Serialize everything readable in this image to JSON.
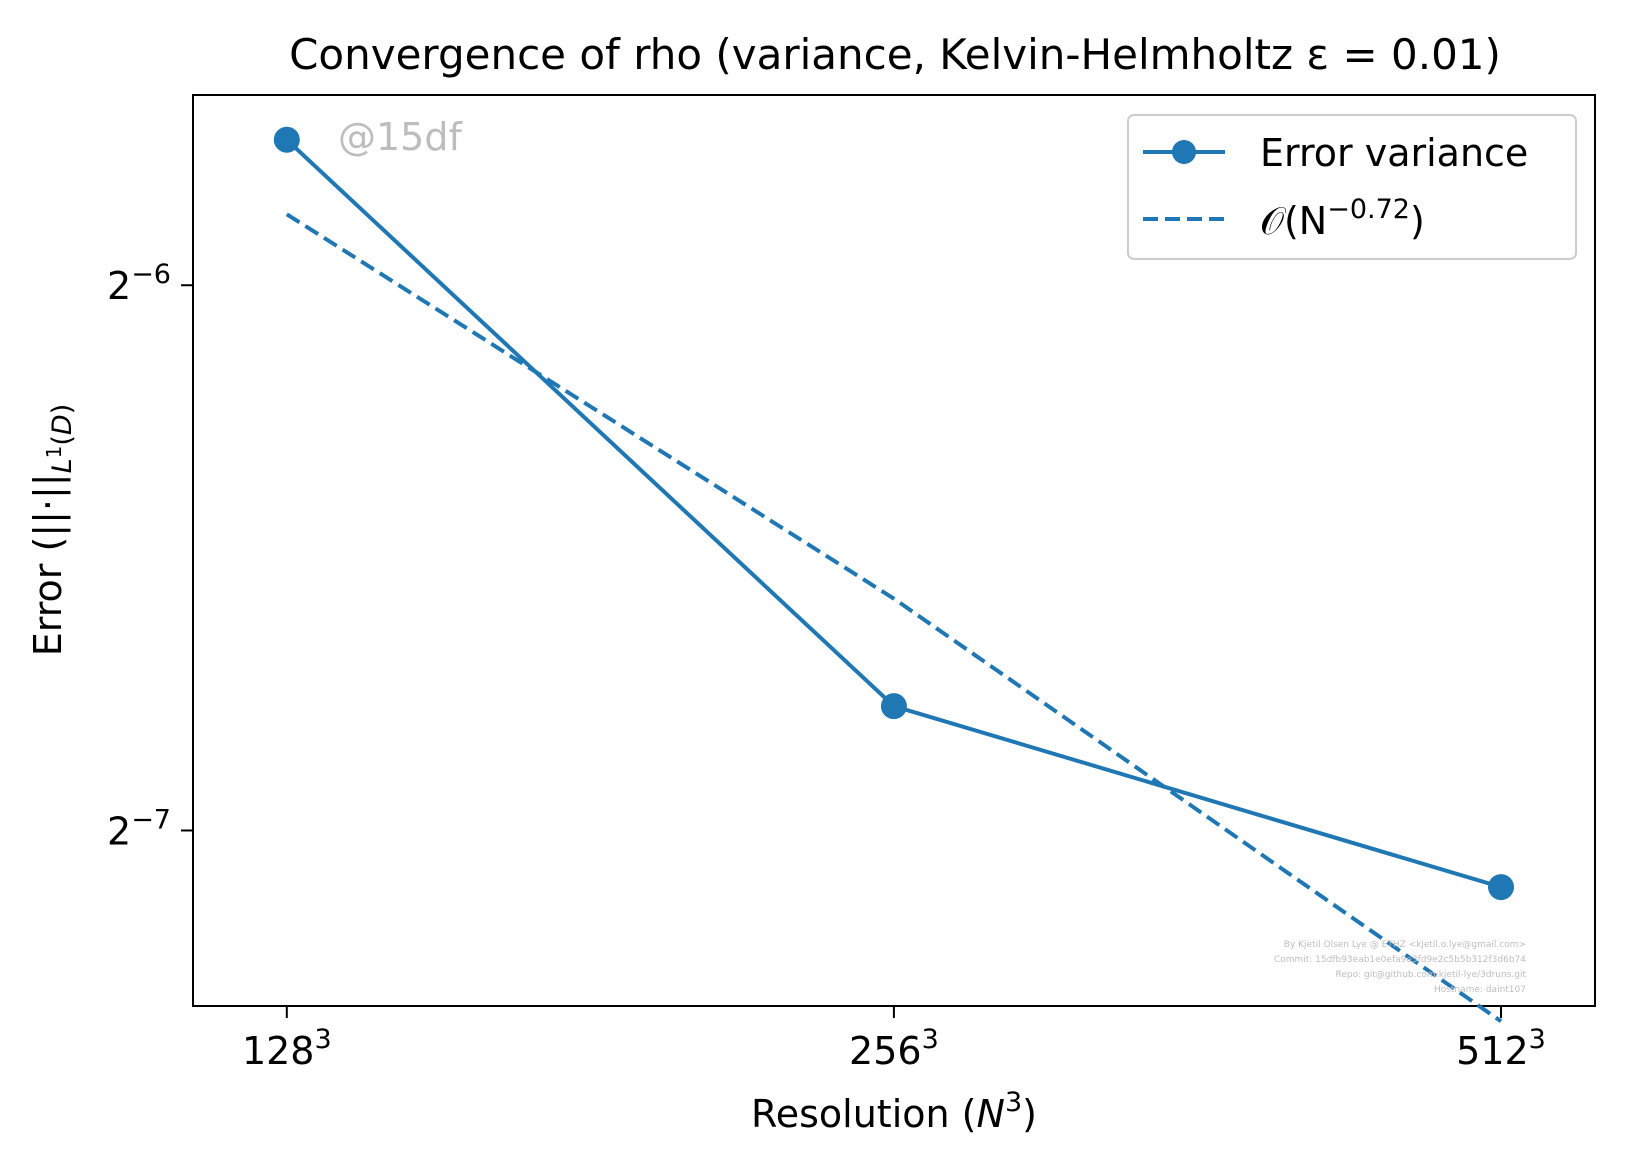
{
  "chart_data": {
    "type": "line",
    "title": "Convergence of rho (variance, Kelvin-Helmholtz ε = 0.01)",
    "xlabel": "Resolution (N³)",
    "ylabel": "Error (||·||L¹(D))",
    "x_scale": "log2",
    "y_scale": "log2",
    "x": [
      128,
      256,
      512
    ],
    "x_ticks": [
      {
        "value": 128,
        "base": "128",
        "sup": "3"
      },
      {
        "value": 256,
        "base": "256",
        "sup": "3"
      },
      {
        "value": 512,
        "base": "512",
        "sup": "3"
      }
    ],
    "y_ticks": [
      {
        "value": 0.015625,
        "base": "2",
        "sup": "−6"
      },
      {
        "value": 0.0078125,
        "base": "2",
        "sup": "−7"
      }
    ],
    "xlim": [
      115,
      570
    ],
    "ylim": [
      0.00625,
      0.0199
    ],
    "series": [
      {
        "name": "Error variance",
        "style": "solid-marker",
        "color": "#1f77b4",
        "values": [
          0.0188,
          0.00915,
          0.00727
        ]
      },
      {
        "name": "𝒪(N⁻⁰·⁷²)",
        "style": "dashed",
        "color": "#1f77b4",
        "values": [
          0.0171,
          0.01049,
          0.00613
        ]
      }
    ],
    "legend": {
      "placement": "top-right",
      "entries": [
        {
          "label": "Error variance"
        },
        {
          "label_prefix": "𝒪(N",
          "label_sup": "−0.72",
          "label_suffix": ")"
        }
      ]
    },
    "grid": false,
    "annotation": "@15df",
    "footer": [
      "By Kjetil Olsen Lye @ ETHZ <kjetil.o.lye@gmail.com>",
      "Commit: 15dfb93eab1e0efa9e3fd9e2c5b5b312f3d6b74",
      "Repo: git@github.com:kjetil-lye/3druns.git",
      "Hostname: daint107"
    ]
  }
}
